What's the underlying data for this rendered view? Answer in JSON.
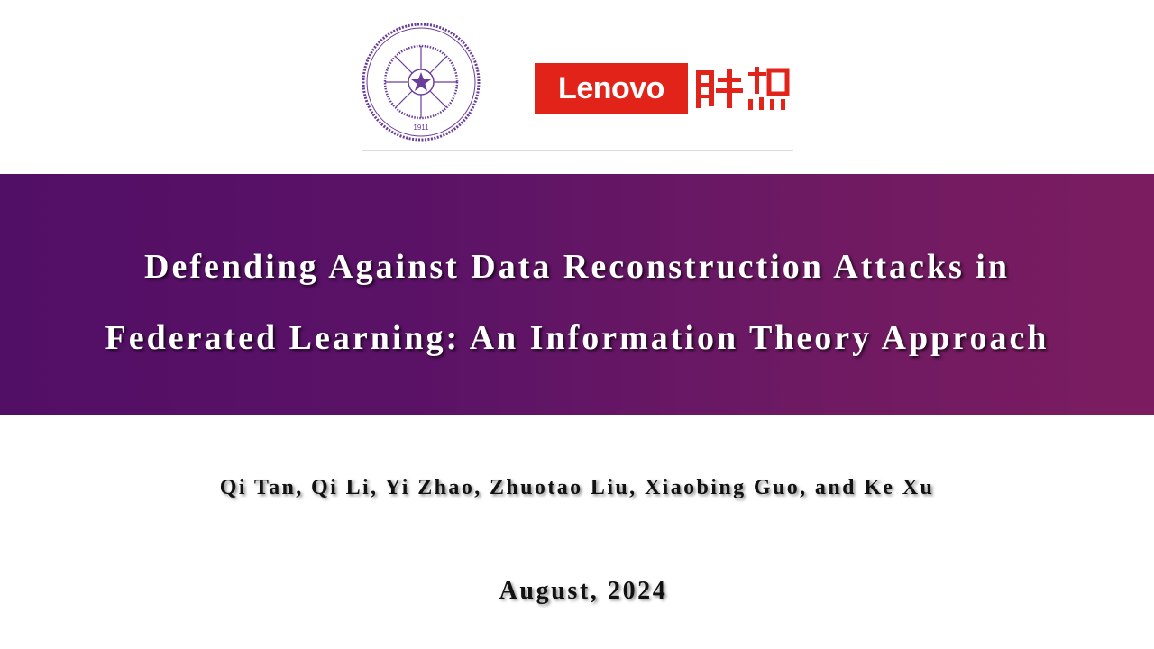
{
  "logos": {
    "university": {
      "name": "Tsinghua University",
      "seal_text": "TSINGHUA UNIVERSITY",
      "year": "1911",
      "color": "#6a3d9a"
    },
    "company": {
      "name": "Lenovo",
      "chinese_name": "联想",
      "color": "#e2231a"
    }
  },
  "slide": {
    "title_line1": "Defending Against Data Reconstruction Attacks in",
    "title_line2": "Federated Learning: An Information Theory Approach",
    "authors": "Qi Tan, Qi Li, Yi Zhao, Zhuotao Liu, Xiaobing Guo, and Ke Xu",
    "date": "August, 2024",
    "banner_colors": [
      "#520f66",
      "#7c1c60"
    ]
  }
}
